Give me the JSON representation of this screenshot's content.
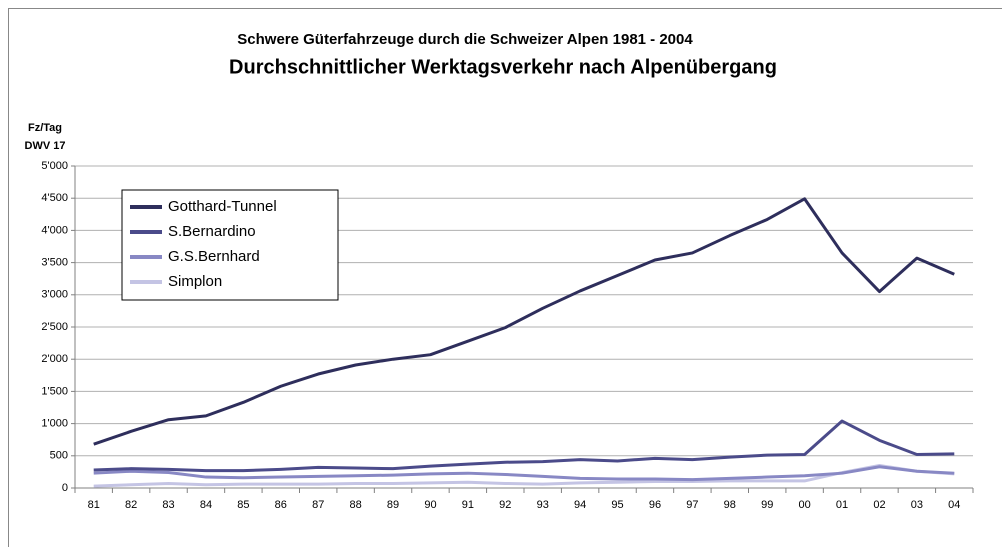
{
  "chart_data": {
    "type": "line",
    "title": "Schwere Güterfahrzeuge durch die Schweizer Alpen 1981 - 2004",
    "subtitle": "Durchschnittlicher Werktagsverkehr nach Alpenübergang",
    "y_label": [
      "Fz/Tag",
      "DWV 17"
    ],
    "categories": [
      "81",
      "82",
      "83",
      "84",
      "85",
      "86",
      "87",
      "88",
      "89",
      "90",
      "91",
      "92",
      "93",
      "94",
      "95",
      "96",
      "97",
      "98",
      "99",
      "00",
      "01",
      "02",
      "03",
      "04"
    ],
    "series": [
      {
        "name": "Gotthard-Tunnel",
        "color": "#2e2e5c",
        "values": [
          680,
          880,
          1060,
          1120,
          1330,
          1580,
          1770,
          1910,
          2000,
          2070,
          2280,
          2490,
          2790,
          3060,
          3300,
          3540,
          3650,
          3920,
          4170,
          4490,
          3650,
          3050,
          3570,
          3320
        ]
      },
      {
        "name": "S.Bernardino",
        "color": "#4b4b8a",
        "values": [
          280,
          300,
          290,
          270,
          270,
          290,
          320,
          310,
          300,
          340,
          370,
          400,
          410,
          440,
          420,
          460,
          440,
          480,
          510,
          520,
          1040,
          740,
          520,
          530
        ]
      },
      {
        "name": "G.S.Bernhard",
        "color": "#8888c4",
        "values": [
          230,
          260,
          240,
          170,
          160,
          170,
          180,
          190,
          200,
          220,
          230,
          210,
          180,
          150,
          140,
          140,
          130,
          150,
          170,
          190,
          230,
          330,
          260,
          230
        ]
      },
      {
        "name": "Simplon",
        "color": "#c4c4e4",
        "values": [
          30,
          50,
          70,
          50,
          60,
          60,
          60,
          70,
          70,
          80,
          90,
          70,
          60,
          80,
          90,
          100,
          100,
          110,
          110,
          110,
          240,
          350,
          260,
          220
        ]
      }
    ],
    "ylim": [
      0,
      5000
    ],
    "yticks": [
      0,
      {
        "value": 500,
        "label": "500"
      },
      {
        "value": 1000,
        "label": "1'000"
      },
      {
        "value": 1500,
        "label": "1'500"
      },
      {
        "value": 2000,
        "label": "2'000"
      },
      {
        "value": 2500,
        "label": "2'500"
      },
      {
        "value": 3000,
        "label": "3'000"
      },
      {
        "value": 3500,
        "label": "3'500"
      },
      {
        "value": 4000,
        "label": "4'000"
      },
      {
        "value": 4500,
        "label": "4'500"
      },
      {
        "value": 5000,
        "label": "5'000"
      }
    ],
    "grid": true,
    "legend": "upper left"
  }
}
